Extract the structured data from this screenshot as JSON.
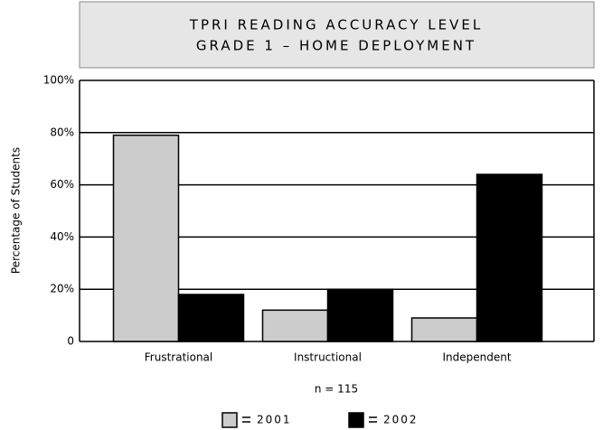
{
  "chart_data": {
    "type": "bar",
    "title": [
      "TPRI READING ACCURACY LEVEL",
      "GRADE 1 – HOME DEPLOYMENT"
    ],
    "y_label": "Percentage of Students",
    "annotation": "n = 115",
    "categories": [
      "Frustrational",
      "Instructional",
      "Independent"
    ],
    "series": [
      {
        "name": "2001",
        "color": "#cccccc",
        "values": [
          79,
          12,
          9
        ]
      },
      {
        "name": "2002",
        "color": "#000000",
        "values": [
          18,
          20,
          64
        ]
      }
    ],
    "ylim": [
      0,
      100
    ],
    "yticks": [
      0,
      {
        "value": 20,
        "label": "20%"
      },
      {
        "value": 40,
        "label": "40%"
      },
      {
        "value": 60,
        "label": "60%"
      },
      {
        "value": 80,
        "label": "80%"
      },
      {
        "value": 100,
        "label": "100%"
      }
    ],
    "grid": true
  }
}
